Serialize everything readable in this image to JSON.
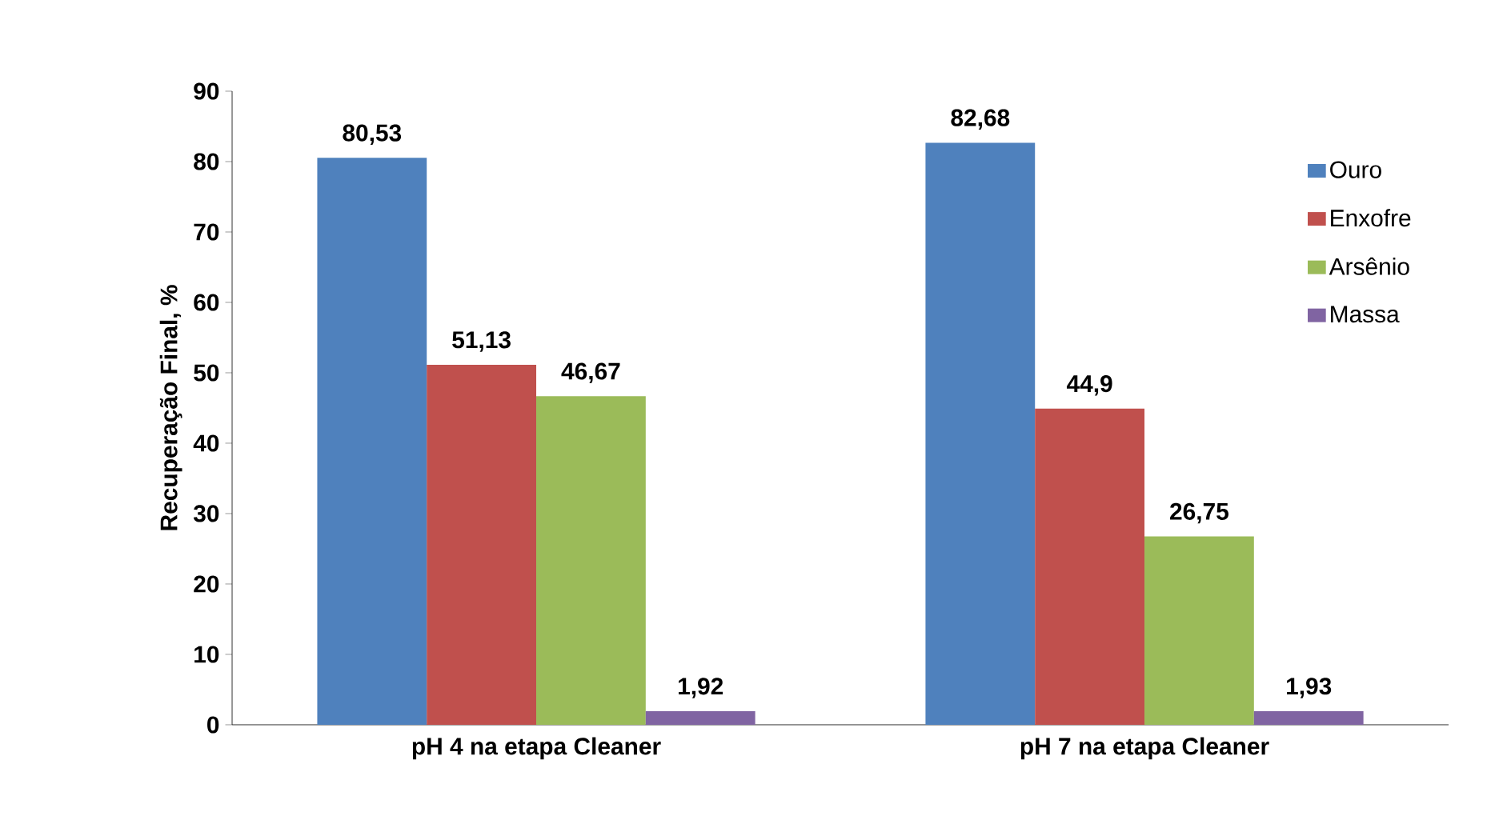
{
  "chart_data": {
    "type": "bar",
    "ylabel": "Recuperação Final, %",
    "categories": [
      "pH 4 na etapa Cleaner",
      "pH 7 na etapa Cleaner"
    ],
    "series": [
      {
        "name": "Ouro",
        "color": "#4f81bd",
        "values": [
          80.53,
          82.68
        ],
        "value_labels": [
          "80,53",
          "82,68"
        ]
      },
      {
        "name": "Enxofre",
        "color": "#c0504d",
        "values": [
          51.13,
          44.9
        ],
        "value_labels": [
          "51,13",
          "44,9"
        ]
      },
      {
        "name": "Arsênio",
        "color": "#9bbb59",
        "values": [
          46.67,
          26.75
        ],
        "value_labels": [
          "46,67",
          "26,75"
        ]
      },
      {
        "name": "Massa",
        "color": "#8064a2",
        "values": [
          1.92,
          1.93
        ],
        "value_labels": [
          "1,92",
          "1,93"
        ]
      }
    ],
    "ylim": [
      0,
      90
    ],
    "yticks": [
      0,
      10,
      20,
      30,
      40,
      50,
      60,
      70,
      80,
      90
    ],
    "legend": "right",
    "grid": false
  }
}
